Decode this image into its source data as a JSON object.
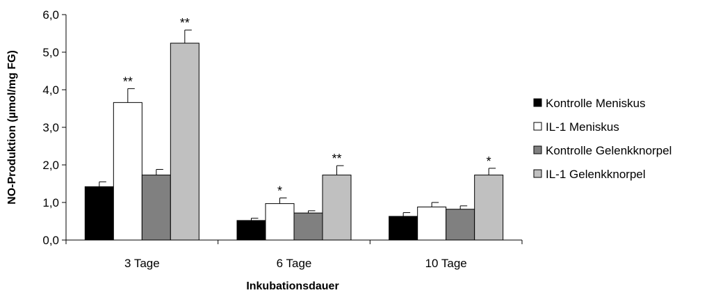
{
  "chart_data": {
    "type": "bar",
    "xlabel": "Inkubationsdauer",
    "ylabel": "NO-Produktion (µmol/mg FG)",
    "ylim": [
      0,
      6
    ],
    "yticks": [
      "0,0",
      "1,0",
      "2,0",
      "3,0",
      "4,0",
      "5,0",
      "6,0"
    ],
    "categories": [
      "3 Tage",
      "6 Tage",
      "10 Tage"
    ],
    "legend_position": "right",
    "series": [
      {
        "name": "Kontrolle Meniskus",
        "color": "#000000",
        "values": [
          1.42,
          0.52,
          0.63
        ],
        "errors": [
          0.13,
          0.06,
          0.1
        ],
        "significance": [
          "",
          "",
          ""
        ]
      },
      {
        "name": "IL-1 Meniskus",
        "color": "#ffffff",
        "values": [
          3.66,
          0.97,
          0.88
        ],
        "errors": [
          0.37,
          0.15,
          0.12
        ],
        "significance": [
          "**",
          "*",
          ""
        ]
      },
      {
        "name": "Kontrolle Gelenkknorpel",
        "color": "#808080",
        "values": [
          1.73,
          0.72,
          0.82
        ],
        "errors": [
          0.15,
          0.06,
          0.09
        ],
        "significance": [
          "",
          "",
          ""
        ]
      },
      {
        "name": "IL-1 Gelenkknorpel",
        "color": "#c0c0c0",
        "values": [
          5.24,
          1.73,
          1.73
        ],
        "errors": [
          0.35,
          0.25,
          0.18
        ],
        "significance": [
          "**",
          "**",
          "*"
        ]
      }
    ]
  }
}
